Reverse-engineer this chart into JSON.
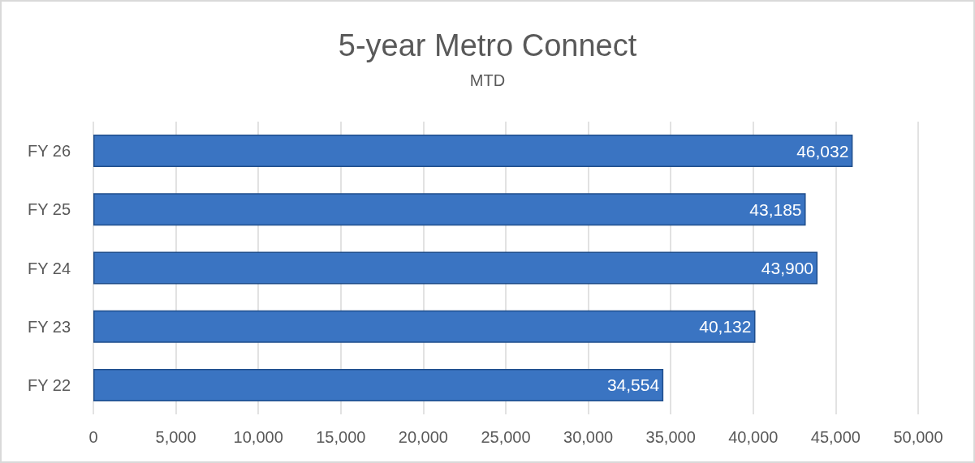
{
  "chart_data": {
    "type": "bar",
    "orientation": "horizontal",
    "title": "5-year Metro Connect",
    "subtitle": "MTD",
    "categories": [
      "FY 26",
      "FY 25",
      "FY 24",
      "FY 23",
      "FY 22"
    ],
    "values": [
      46032,
      43185,
      43900,
      40132,
      34554
    ],
    "value_labels": [
      "46,032",
      "43,185",
      "43,900",
      "40,132",
      "34,554"
    ],
    "color": "#3a74c2",
    "xlim": [
      0,
      50000
    ],
    "xticks": [
      0,
      {
        "value": 5000,
        "label": "5,000"
      },
      {
        "value": 10000,
        "label": "10,000"
      },
      {
        "value": 15000,
        "label": "15,000"
      },
      {
        "value": 20000,
        "label": "20,000"
      },
      {
        "value": 25000,
        "label": "25,000"
      },
      {
        "value": 30000,
        "label": "30,000"
      },
      {
        "value": 35000,
        "label": "35,000"
      },
      {
        "value": 40000,
        "label": "40,000"
      },
      {
        "value": 45000,
        "label": "45,000"
      },
      {
        "value": 50000,
        "label": "50,000"
      }
    ],
    "grid": "x"
  }
}
